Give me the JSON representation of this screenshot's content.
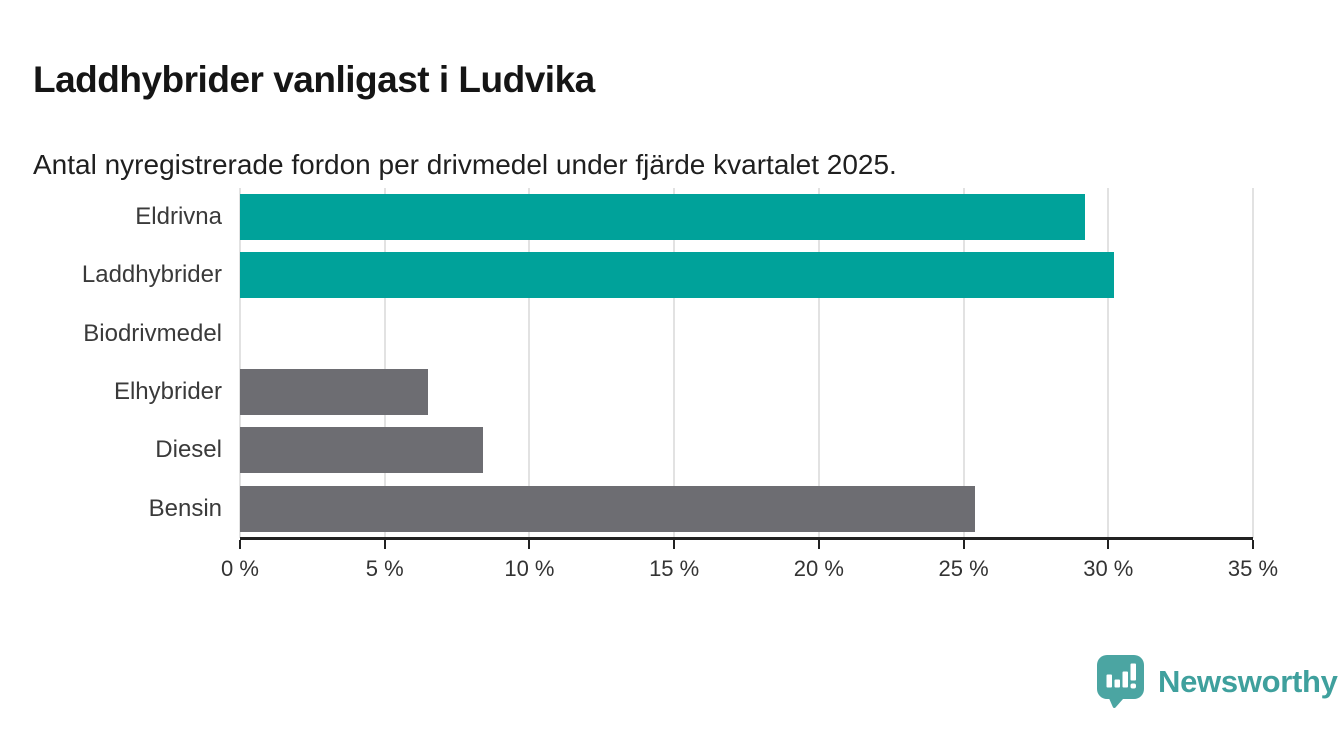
{
  "header": {
    "title": "Laddhybrider vanligast i Ludvika",
    "subtitle": "Antal nyregistrerade fordon per drivmedel under fjärde kvartalet 2025."
  },
  "chart_data": {
    "type": "bar",
    "orientation": "horizontal",
    "title": "Laddhybrider vanligast i Ludvika",
    "subtitle": "Antal nyregistrerade fordon per drivmedel under fjärde kvartalet 2025.",
    "categories": [
      "Eldrivna",
      "Laddhybrider",
      "Biodrivmedel",
      "Elhybrider",
      "Diesel",
      "Bensin"
    ],
    "values": [
      29.2,
      30.2,
      0,
      6.5,
      8.4,
      25.4
    ],
    "unit": "%",
    "xlim": [
      0,
      35
    ],
    "x_ticks": [
      0,
      5,
      10,
      15,
      20,
      25,
      30,
      35
    ],
    "x_tick_labels": [
      "0 %",
      "5 %",
      "10 %",
      "15 %",
      "20 %",
      "25 %",
      "30 %",
      "35 %"
    ],
    "bar_colors": [
      "#00a29a",
      "#00a29a",
      "#6d6d72",
      "#6d6d72",
      "#6d6d72",
      "#6d6d72"
    ],
    "highlight_color": "#00a29a",
    "default_color": "#6d6d72",
    "gridline_color": "#e2e2e2",
    "axis_color": "#222222",
    "grid": true,
    "legend": "none"
  },
  "footer": {
    "brand": "Newsworthy",
    "brand_color": "#3fa09d",
    "logo_icon": "bar-chart-speech-bubble-icon",
    "logo_color": "#4ba5a2"
  }
}
